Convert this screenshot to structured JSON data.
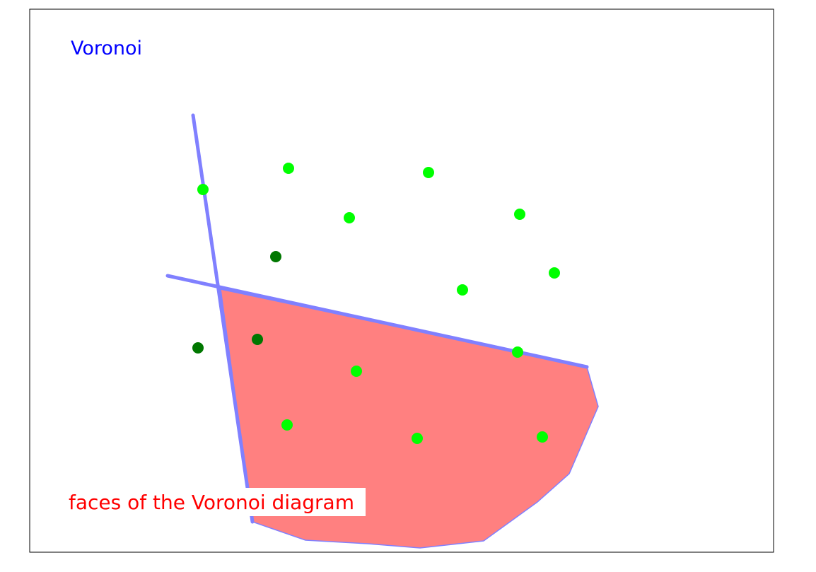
{
  "diagram": {
    "title": "Voronoi",
    "caption": "faces of the Voronoi diagram",
    "colors": {
      "title": "#0000ff",
      "caption": "#ff0000",
      "face_fill": "#ff8080",
      "edge_stroke": "#8080ff",
      "site_light": "#00ff00",
      "site_dark": "#007700",
      "frame": "#000000"
    },
    "sites": [
      {
        "kind": "light"
      },
      {
        "kind": "light"
      },
      {
        "kind": "light"
      },
      {
        "kind": "light"
      },
      {
        "kind": "light"
      },
      {
        "kind": "dark"
      },
      {
        "kind": "light"
      },
      {
        "kind": "light"
      },
      {
        "kind": "dark"
      },
      {
        "kind": "dark"
      },
      {
        "kind": "light"
      },
      {
        "kind": "light"
      },
      {
        "kind": "light"
      },
      {
        "kind": "light"
      },
      {
        "kind": "light"
      }
    ]
  }
}
